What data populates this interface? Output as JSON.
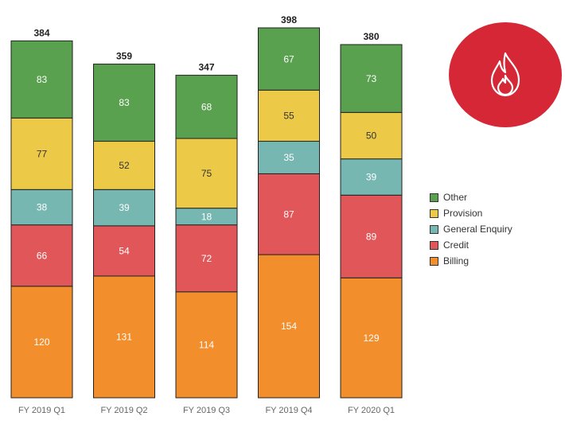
{
  "colors": {
    "Other": "#59a14f",
    "Provision": "#edc948",
    "General Enquiry": "#76b7b2",
    "Credit": "#e15759",
    "Billing": "#f28e2b",
    "badge": "#d62737"
  },
  "badge": {
    "icon": "flame-icon"
  },
  "legend": [
    "Other",
    "Provision",
    "General Enquiry",
    "Credit",
    "Billing"
  ],
  "chart_data": {
    "type": "bar",
    "stacked": true,
    "categories": [
      "FY 2019 Q1",
      "FY 2019 Q2",
      "FY 2019 Q3",
      "FY 2019 Q4",
      "FY 2020 Q1"
    ],
    "series": [
      {
        "name": "Billing",
        "values": [
          120,
          131,
          114,
          154,
          129
        ]
      },
      {
        "name": "Credit",
        "values": [
          66,
          54,
          72,
          87,
          89
        ]
      },
      {
        "name": "General Enquiry",
        "values": [
          38,
          39,
          18,
          35,
          39
        ]
      },
      {
        "name": "Provision",
        "values": [
          77,
          52,
          75,
          55,
          50
        ]
      },
      {
        "name": "Other",
        "values": [
          83,
          83,
          68,
          67,
          73
        ]
      }
    ],
    "totals": [
      384,
      359,
      347,
      398,
      380
    ],
    "ylim": [
      0,
      398
    ],
    "grid": false,
    "legend_position": "right"
  }
}
